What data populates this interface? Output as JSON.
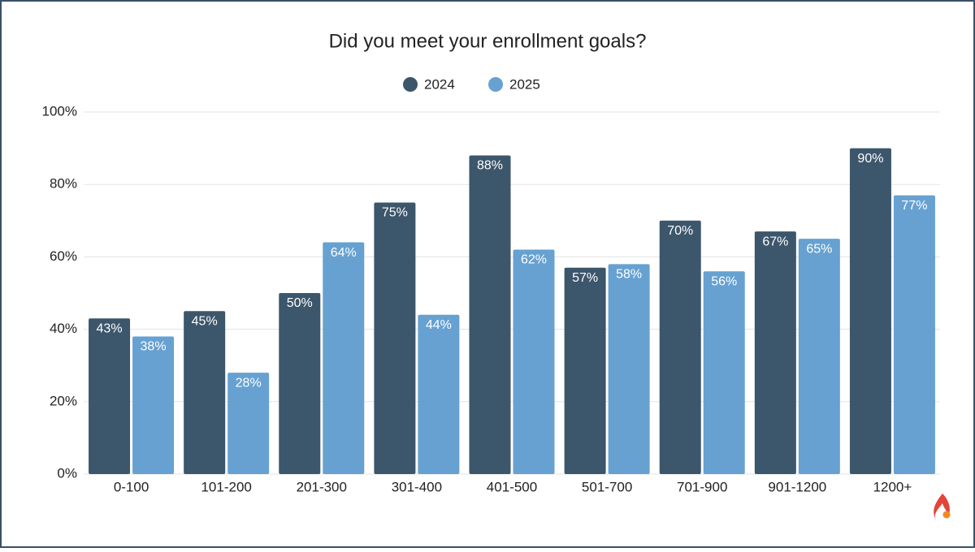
{
  "chart_data": {
    "type": "bar",
    "title": "Did you meet your enrollment goals?",
    "categories": [
      "0-100",
      "101-200",
      "201-300",
      "301-400",
      "401-500",
      "501-700",
      "701-900",
      "901-1200",
      "1200+"
    ],
    "series": [
      {
        "name": "2024",
        "color": "#3c566b",
        "values": [
          43,
          45,
          50,
          75,
          88,
          57,
          70,
          67,
          90
        ],
        "value_labels": [
          "43%",
          "45%",
          "50%",
          "75%",
          "88%",
          "57%",
          "70%",
          "67%",
          "90%"
        ]
      },
      {
        "name": "2025",
        "color": "#66a1d1",
        "values": [
          38,
          28,
          64,
          44,
          62,
          58,
          56,
          65,
          77
        ],
        "value_labels": [
          "38%",
          "28%",
          "64%",
          "44%",
          "62%",
          "58%",
          "56%",
          "65%",
          "77%"
        ]
      }
    ],
    "ylim": [
      0,
      100
    ],
    "yticks": [
      {
        "value": 0,
        "label": "0%"
      },
      {
        "value": 20,
        "label": "20%"
      },
      {
        "value": 40,
        "label": "40%"
      },
      {
        "value": 60,
        "label": "60%"
      },
      {
        "value": 80,
        "label": "80%"
      },
      {
        "value": 100,
        "label": "100%"
      }
    ],
    "grid": true,
    "legend": "top"
  }
}
